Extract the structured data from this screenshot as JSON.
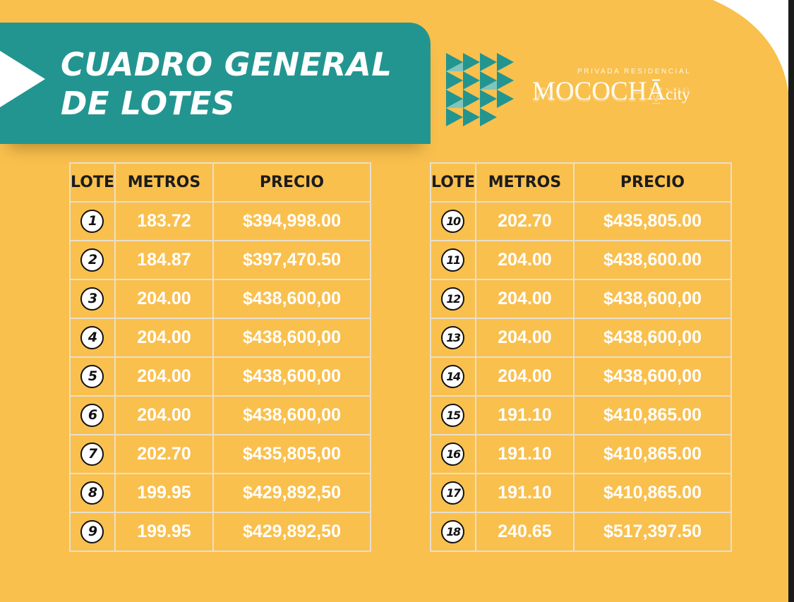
{
  "title": {
    "line1": "CUADRO GENERAL",
    "line2": "DE LOTES"
  },
  "logo": {
    "tagline": "PRIVADA RESIDENCIAL",
    "name": "MOCOCHĀ",
    "suffix": "city"
  },
  "colors": {
    "background": "#f9c04e",
    "accent": "#239590",
    "grid": "#e9dfcd"
  },
  "headers": {
    "lote": "LOTE",
    "metros": "METROS",
    "precio": "PRECIO"
  },
  "left_table": [
    {
      "lote": "1",
      "metros": "183.72",
      "precio": "$394,998.00"
    },
    {
      "lote": "2",
      "metros": "184.87",
      "precio": "$397,470.50"
    },
    {
      "lote": "3",
      "metros": "204.00",
      "precio": "$438,600,00"
    },
    {
      "lote": "4",
      "metros": "204.00",
      "precio": "$438,600,00"
    },
    {
      "lote": "5",
      "metros": "204.00",
      "precio": "$438,600,00"
    },
    {
      "lote": "6",
      "metros": "204.00",
      "precio": "$438,600,00"
    },
    {
      "lote": "7",
      "metros": "202.70",
      "precio": "$435,805,00"
    },
    {
      "lote": "8",
      "metros": "199.95",
      "precio": "$429,892,50"
    },
    {
      "lote": "9",
      "metros": "199.95",
      "precio": "$429,892,50"
    }
  ],
  "right_table": [
    {
      "lote": "10",
      "metros": "202.70",
      "precio": "$435,805.00"
    },
    {
      "lote": "11",
      "metros": "204.00",
      "precio": "$438,600.00"
    },
    {
      "lote": "12",
      "metros": "204.00",
      "precio": "$438,600,00"
    },
    {
      "lote": "13",
      "metros": "204.00",
      "precio": "$438,600,00"
    },
    {
      "lote": "14",
      "metros": "204.00",
      "precio": "$438,600,00"
    },
    {
      "lote": "15",
      "metros": "191.10",
      "precio": "$410,865.00"
    },
    {
      "lote": "16",
      "metros": "191.10",
      "precio": "$410,865.00"
    },
    {
      "lote": "17",
      "metros": "191.10",
      "precio": "$410,865.00"
    },
    {
      "lote": "18",
      "metros": "240.65",
      "precio": "$517,397.50"
    }
  ]
}
